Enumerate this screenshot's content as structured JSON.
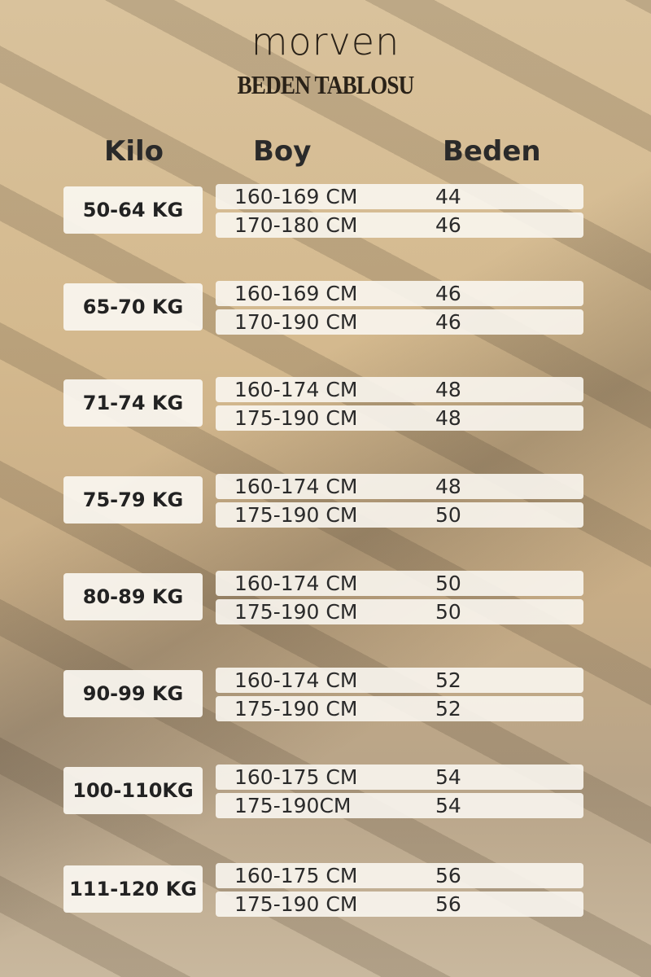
{
  "brand": "morven",
  "title": "BEDEN TABLOSU",
  "headers": {
    "kilo": "Kilo",
    "boy": "Boy",
    "beden": "Beden"
  },
  "groups": [
    {
      "kilo": "50-64 KG",
      "rows": [
        {
          "boy": "160-169 CM",
          "beden": "44"
        },
        {
          "boy": "170-180 CM",
          "beden": "46"
        }
      ]
    },
    {
      "kilo": "65-70 KG",
      "rows": [
        {
          "boy": "160-169 CM",
          "beden": "46"
        },
        {
          "boy": "170-190 CM",
          "beden": "46"
        }
      ]
    },
    {
      "kilo": "71-74 KG",
      "rows": [
        {
          "boy": "160-174 CM",
          "beden": "48"
        },
        {
          "boy": "175-190 CM",
          "beden": "48"
        }
      ]
    },
    {
      "kilo": "75-79 KG",
      "rows": [
        {
          "boy": "160-174 CM",
          "beden": "48"
        },
        {
          "boy": "175-190 CM",
          "beden": "50"
        }
      ]
    },
    {
      "kilo": "80-89 KG",
      "rows": [
        {
          "boy": "160-174 CM",
          "beden": "50"
        },
        {
          "boy": "175-190 CM",
          "beden": "50"
        }
      ]
    },
    {
      "kilo": "90-99 KG",
      "rows": [
        {
          "boy": "160-174 CM",
          "beden": "52"
        },
        {
          "boy": "175-190 CM",
          "beden": "52"
        }
      ]
    },
    {
      "kilo": "100-110KG",
      "rows": [
        {
          "boy": "160-175 CM",
          "beden": "54"
        },
        {
          "boy": "175-190CM",
          "beden": "54"
        }
      ]
    },
    {
      "kilo": "111-120 KG",
      "rows": [
        {
          "boy": "160-175 CM",
          "beden": "56"
        },
        {
          "boy": "175-190 CM",
          "beden": "56"
        }
      ]
    }
  ]
}
